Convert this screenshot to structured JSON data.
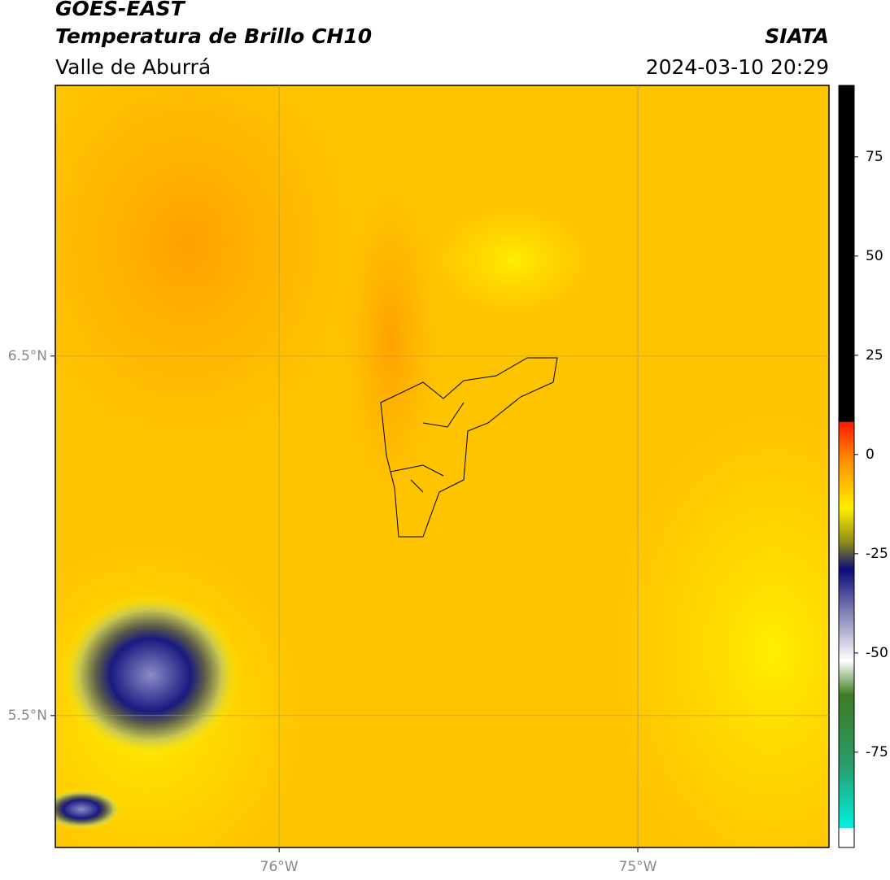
{
  "header": {
    "title": "GOES-EAST",
    "subtitle": "Temperatura de Brillo CH10",
    "region": "Valle de Aburrá",
    "source": "SIATA",
    "timestamp": "2024-03-10 20:29"
  },
  "map": {
    "latlim": [
      5.133,
      7.253
    ],
    "lonlim": [
      -76.624,
      -74.467
    ],
    "lat_ticks": [
      {
        "value": 6.5,
        "label": "6.5°N"
      },
      {
        "value": 5.5,
        "label": "5.5°N"
      }
    ],
    "lon_ticks": [
      {
        "value": -76,
        "label": "76°W"
      },
      {
        "value": -75,
        "label": "75°W"
      }
    ]
  },
  "colorbar": {
    "lim": [
      -99,
      93
    ],
    "ticks": [
      75,
      50,
      25,
      0,
      -25,
      -50,
      -75
    ]
  }
}
